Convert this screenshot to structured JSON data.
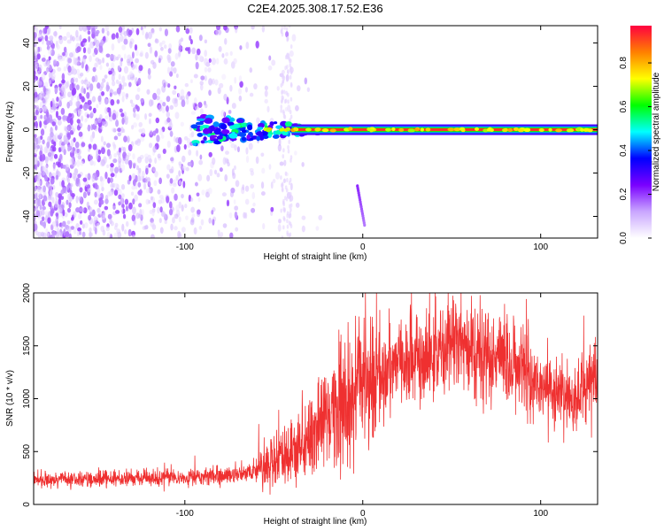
{
  "title": "C2E4.2025.308.17.52.E36",
  "chart_data": [
    {
      "type": "heatmap",
      "name": "spectrogram",
      "xlabel": "Height of straight line (km)",
      "ylabel": "Frequency (Hz)",
      "xlim": [
        -185,
        132
      ],
      "ylim": [
        -50,
        48
      ],
      "xticks": [
        -100,
        0,
        100
      ],
      "xtick_labels": [
        "-100",
        "0",
        "100"
      ],
      "yticks": [
        -40,
        -20,
        0,
        20,
        40
      ],
      "ytick_labels": [
        "-40",
        "-20",
        "0",
        "20",
        "40"
      ],
      "ridge": {
        "start_km": -95,
        "end_km": 132,
        "frequency_hz": 0
      },
      "secondary_feature": {
        "from": {
          "x": -3,
          "y": -26
        },
        "to": {
          "x": 1,
          "y": -44
        }
      },
      "noise_region_km": [
        -185,
        -35
      ],
      "colorbar": {
        "label": "Normalized spectral amplitude",
        "ticks": [
          0.0,
          0.2,
          0.4,
          0.6,
          0.8
        ],
        "tick_labels": [
          "0.0",
          "0.2",
          "0.4",
          "0.6",
          "0.8"
        ],
        "range": [
          0,
          0.97
        ],
        "colors": [
          "#ffffff",
          "#c9a6ff",
          "#7a00ff",
          "#0000ff",
          "#00ffff",
          "#00ff00",
          "#ffff00",
          "#ff8000",
          "#ff0040"
        ]
      }
    },
    {
      "type": "line",
      "name": "snr",
      "xlabel": "Height of straight line (km)",
      "ylabel": "SNR (10 * v/v)",
      "xlim": [
        -185,
        132
      ],
      "ylim": [
        0,
        2000
      ],
      "xticks": [
        -100,
        0,
        100
      ],
      "xtick_labels": [
        "-100",
        "0",
        "100"
      ],
      "yticks": [
        0,
        500,
        1000,
        1500,
        2000
      ],
      "ytick_labels": [
        "0",
        "500",
        "1000",
        "1500",
        "2000"
      ],
      "line_color": "#ef3030",
      "envelope_km": [
        -185,
        -150,
        -100,
        -70,
        -50,
        -40,
        -30,
        -20,
        -10,
        0,
        10,
        20,
        40,
        55,
        70,
        90,
        110,
        120,
        132
      ],
      "envelope_snr": [
        230,
        240,
        250,
        280,
        380,
        450,
        620,
        850,
        1000,
        1150,
        1250,
        1350,
        1450,
        1500,
        1400,
        1250,
        1050,
        1000,
        1250
      ]
    }
  ]
}
